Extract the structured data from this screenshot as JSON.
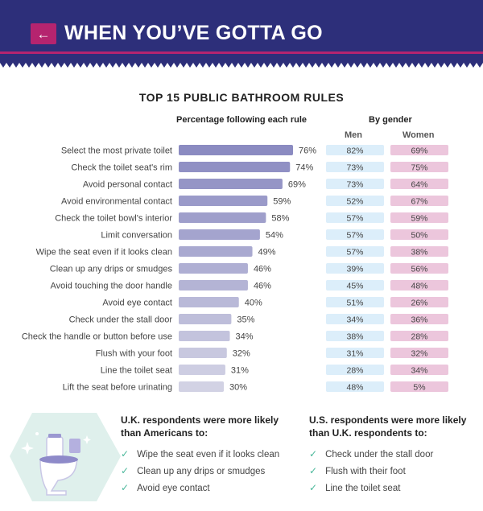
{
  "header": {
    "title": "WHEN YOU’VE GOTTA GO",
    "back_icon": "arrow-left-icon",
    "bg_color": "#2d2f7a",
    "accent_color": "#b5246f"
  },
  "chart_data": {
    "type": "bar",
    "title": "TOP 15 PUBLIC BATHROOM RULES",
    "subtitle": "Percentage following each rule",
    "gender_heading": "By gender",
    "gender_columns": [
      "Men",
      "Women"
    ],
    "categories": [
      "Select the most private toilet",
      "Check the toilet seat's rim",
      "Avoid personal contact",
      "Avoid environmental contact",
      "Check the toilet bowl's interior",
      "Limit conversation",
      "Wipe the seat even if it looks clean",
      "Clean up any drips or smudges",
      "Avoid touching the door handle",
      "Avoid eye contact",
      "Check under the stall door",
      "Check the handle or button before use",
      "Flush with your foot",
      "Line the toilet seat",
      "Lift the seat before urinating"
    ],
    "values": [
      76,
      74,
      69,
      59,
      58,
      54,
      49,
      46,
      46,
      40,
      35,
      34,
      32,
      31,
      30
    ],
    "men": [
      82,
      73,
      73,
      52,
      57,
      57,
      57,
      39,
      45,
      51,
      34,
      38,
      31,
      28,
      48
    ],
    "women": [
      69,
      75,
      64,
      67,
      59,
      50,
      38,
      56,
      48,
      26,
      36,
      28,
      32,
      34,
      5
    ],
    "unit": "%",
    "bar_color_start": "#8b8bc1",
    "bar_color_end": "#d2d2e4",
    "men_color": "#dceefa",
    "women_color": "#ecc6dc"
  },
  "footer": {
    "uk": {
      "title_line1": "U.K. respondents were more likely",
      "title_line2": "than Americans to:",
      "items": [
        "Wipe the seat even if it looks clean",
        "Clean up any drips or smudges",
        "Avoid eye contact"
      ]
    },
    "us": {
      "title_line1": "U.S. respondents were more likely",
      "title_line2": "than U.K. respondents to:",
      "items": [
        "Check under the stall door",
        "Flush with their foot",
        "Line the toilet seat"
      ]
    },
    "illustration_icon": "toilet-icon",
    "check_icon": "checkmark-icon"
  }
}
